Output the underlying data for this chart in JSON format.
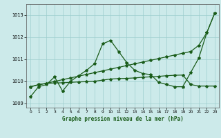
{
  "title": "Graphe pression niveau de la mer (hPa)",
  "background_color": "#cceaea",
  "grid_color": "#9ecece",
  "line_color": "#1a5c1a",
  "ylim": [
    1008.8,
    1013.5
  ],
  "yticks": [
    1009,
    1010,
    1011,
    1012,
    1013
  ],
  "xlim": [
    -0.5,
    23.5
  ],
  "x_ticks": [
    0,
    1,
    2,
    3,
    4,
    5,
    6,
    7,
    8,
    9,
    10,
    11,
    12,
    13,
    14,
    15,
    16,
    17,
    18,
    19,
    20,
    21,
    22,
    23
  ],
  "line1_y": [
    1009.3,
    1009.75,
    1009.85,
    1010.2,
    1009.55,
    1010.0,
    1010.25,
    1010.5,
    1010.8,
    1011.7,
    1011.85,
    1011.35,
    1010.85,
    1010.5,
    1010.35,
    1010.3,
    1009.95,
    1009.85,
    1009.75,
    1009.75,
    1010.4,
    1011.05,
    1012.2,
    1013.1
  ],
  "line2_y": [
    1009.75,
    1009.83,
    1009.91,
    1009.99,
    1010.07,
    1010.15,
    1010.23,
    1010.31,
    1010.39,
    1010.47,
    1010.55,
    1010.63,
    1010.71,
    1010.79,
    1010.87,
    1010.95,
    1011.03,
    1011.11,
    1011.19,
    1011.27,
    1011.35,
    1011.63,
    1012.2,
    1013.1
  ],
  "line3_y": [
    1009.75,
    1009.85,
    1009.9,
    1009.92,
    1009.93,
    1009.95,
    1009.97,
    1009.98,
    1010.0,
    1010.05,
    1010.1,
    1010.12,
    1010.13,
    1010.15,
    1010.18,
    1010.2,
    1010.22,
    1010.25,
    1010.27,
    1010.28,
    1009.85,
    1009.78,
    1009.78,
    1009.78
  ]
}
